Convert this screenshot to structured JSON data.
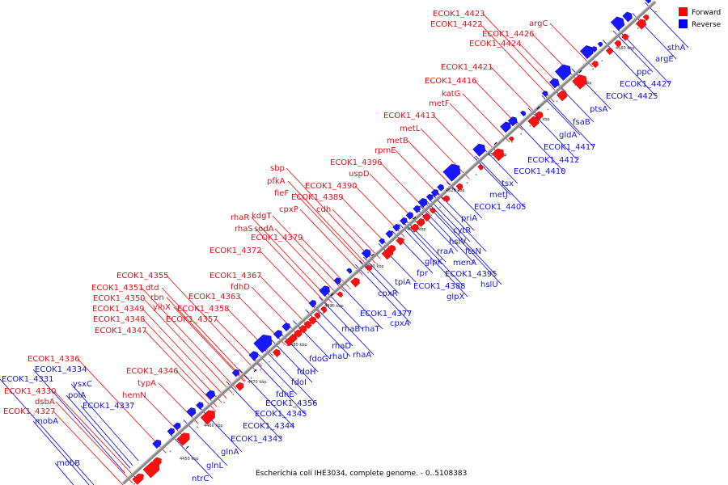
{
  "caption": "Escherichia coli IHE3034, complete genome. - 0..5108383",
  "legend": {
    "forward": {
      "label": "Forward",
      "color": "#ff0000"
    },
    "reverse": {
      "label": "Reverse",
      "color": "#0000ff"
    }
  },
  "ticks": [
    "4450 kbp",
    "4460 kbp",
    "4470 kbp",
    "4480 kbp",
    "4490 kbp",
    "4500 kbp",
    "4510 kbp",
    "4520 kbp",
    "4530 kbp",
    "4540 kbp",
    "4550 kbp",
    "4560 kbp"
  ],
  "forward_labels": [
    "ECOK1_4423",
    "argC",
    "ECOK1_4422",
    "ECOK1_4426",
    "ECOK1_4424",
    "ECOK1_4421",
    "ECOK1_4416",
    "katG",
    "metF",
    "ECOK1_4413",
    "metL",
    "metB",
    "rpmE",
    "ECOK1_4396",
    "uspD",
    "sbp",
    "pfkA",
    "ECOK1_4390",
    "fieF",
    "ECOK1_4389",
    "cpxP",
    "cdh",
    "rhaR",
    "kdgT",
    "rhaS",
    "sodA",
    "ECOK1_4379",
    "ECOK1_4372",
    "ECOK1_4367",
    "fdhD",
    "ECOK1_4355",
    "dtd",
    "ECOK1_4351",
    "rbn",
    "ECOK1_4350",
    "yihX",
    "ECOK1_4363",
    "ECOK1_4349",
    "ECOK1_4358",
    "ECOK1_4348",
    "ECOK1_4357",
    "ECOK1_4347",
    "ECOK1_4336",
    "ECOK1_4346",
    "typA",
    "ECOK1_4330",
    "hemN",
    "dsbA",
    "ECOK1_4327"
  ],
  "reverse_labels": [
    "sthA",
    "argE",
    "ppc",
    "ECOK1_4427",
    "ECOK1_4425",
    "ptsA",
    "fsaB",
    "gldA",
    "ECOK1_4417",
    "ECOK1_4412",
    "ECOK1_4410",
    "tsx",
    "metJ",
    "ECOK1_4405",
    "priA",
    "cytR",
    "hslV",
    "ftsN",
    "rraA",
    "menA",
    "glpK",
    "ECOK1_4395",
    "fpr",
    "hslU",
    "ECOK1_4388",
    "glpX",
    "tpiA",
    "cpxR",
    "ECOK1_4377",
    "cpxA",
    "rhaB",
    "rhaT",
    "rhaD",
    "fdoG",
    "rhaU",
    "rhaA",
    "fdoH",
    "fdoI",
    "fdhE",
    "ECOK1_4356",
    "ECOK1_4345",
    "ECOK1_4344",
    "ECOK1_4343",
    "glnA",
    "glnL",
    "ntrC",
    "ECOK1_4334",
    "ECOK1_4331",
    "ysxC",
    "polA",
    "ECOK1_4337",
    "mobA",
    "mobB"
  ]
}
